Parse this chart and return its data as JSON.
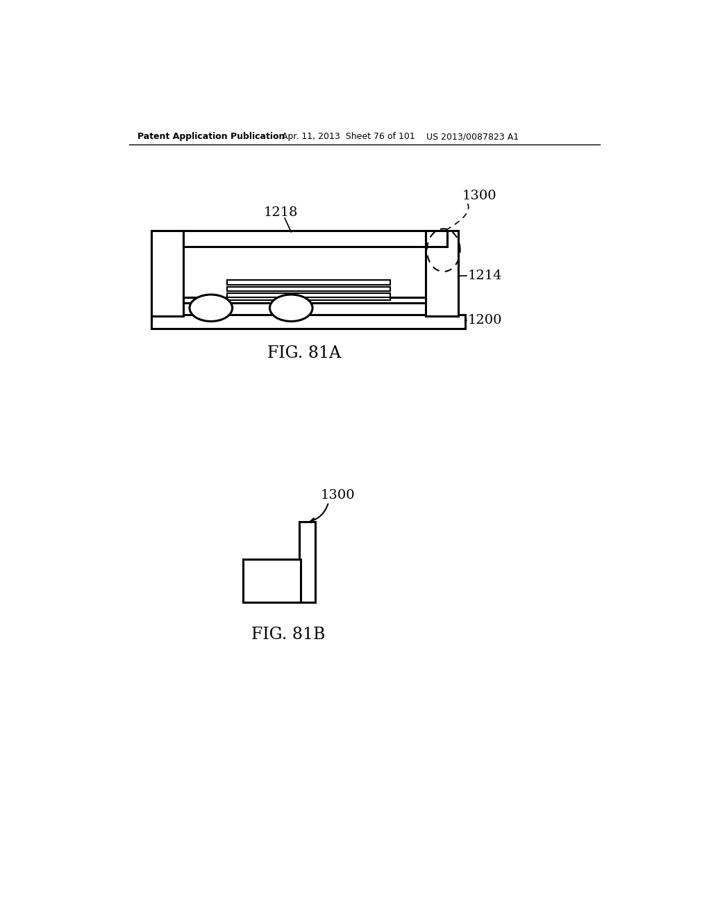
{
  "bg_color": "#ffffff",
  "header_left": "Patent Application Publication",
  "header_mid": "Apr. 11, 2013  Sheet 76 of 101",
  "header_right": "US 2013/0087823 A1",
  "fig81a_label": "FIG. 81A",
  "fig81b_label": "FIG. 81B",
  "label_1300_a": "1300",
  "label_1218": "1218",
  "label_1214": "1214",
  "label_1200": "1200",
  "label_1300_b": "1300"
}
